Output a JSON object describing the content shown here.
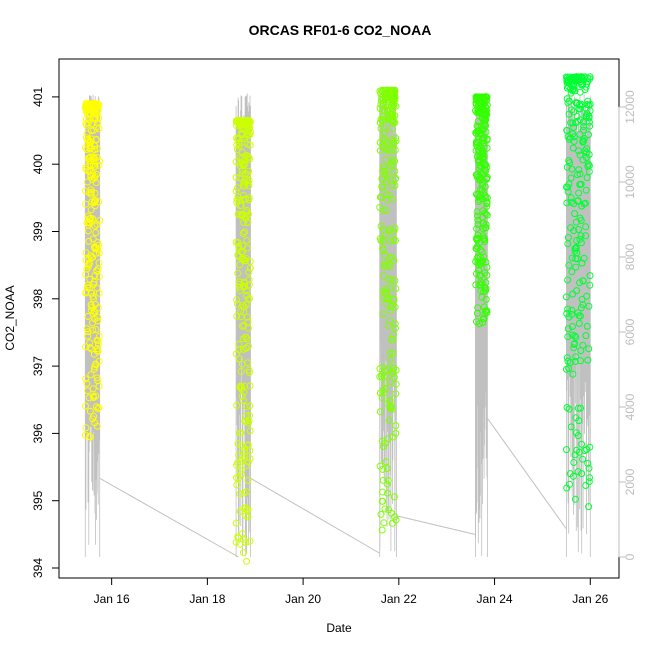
{
  "chart_data": {
    "type": "scatter",
    "title": "ORCAS RF01-6 CO2_NOAA",
    "xlabel": "Date",
    "ylabel": "CO2_NOAA",
    "x_ticks": [
      "Jan 16",
      "Jan 18",
      "Jan 20",
      "Jan 22",
      "Jan 24",
      "Jan 26"
    ],
    "x_tick_days": [
      16,
      18,
      20,
      22,
      24,
      26
    ],
    "xlim_days": [
      14.9,
      26.6
    ],
    "y_ticks": [
      394,
      395,
      396,
      397,
      398,
      399,
      400,
      401
    ],
    "ylim": [
      394,
      401.2
    ],
    "y2_ticks": [
      0,
      2000,
      4000,
      6000,
      8000,
      10000,
      12000
    ],
    "y2lim": [
      0,
      12800
    ],
    "grid": false,
    "legend": "none",
    "colors": {
      "altitude_line": "#c0c0c0",
      "right_axis": "#bdbdbd",
      "flights": [
        "#ffff00",
        "#ccff00",
        "#80ff00",
        "#33ff00",
        "#00ff33"
      ]
    },
    "flights": [
      {
        "day_start": 15.45,
        "day_end": 15.75,
        "co2_low": 395.9,
        "co2_high": 400.9,
        "color": "#ffff00"
      },
      {
        "day_start": 18.6,
        "day_end": 18.9,
        "co2_low": 394.1,
        "co2_high": 400.65,
        "color": "#ccff00"
      },
      {
        "day_start": 21.6,
        "day_end": 21.95,
        "co2_low": 394.5,
        "co2_high": 401.1,
        "color": "#80ff00"
      },
      {
        "day_start": 23.6,
        "day_end": 23.85,
        "co2_low": 397.6,
        "co2_high": 401.0,
        "color": "#33ff00"
      },
      {
        "day_start": 25.5,
        "day_end": 26.0,
        "co2_low": 394.9,
        "co2_high": 401.3,
        "color": "#00ff33"
      }
    ],
    "altitude_series": {
      "name": "",
      "ground_segments": [
        {
          "x": [
            15.75,
            18.65
          ],
          "y": [
            2100,
            0
          ]
        },
        {
          "x": [
            18.9,
            21.6
          ],
          "y": [
            2100,
            100
          ]
        },
        {
          "x": [
            21.95,
            23.6
          ],
          "y": [
            1100,
            600
          ]
        },
        {
          "x": [
            23.85,
            25.5
          ],
          "y": [
            3700,
            750
          ]
        }
      ],
      "altitude_range": [
        0,
        12400
      ]
    }
  }
}
